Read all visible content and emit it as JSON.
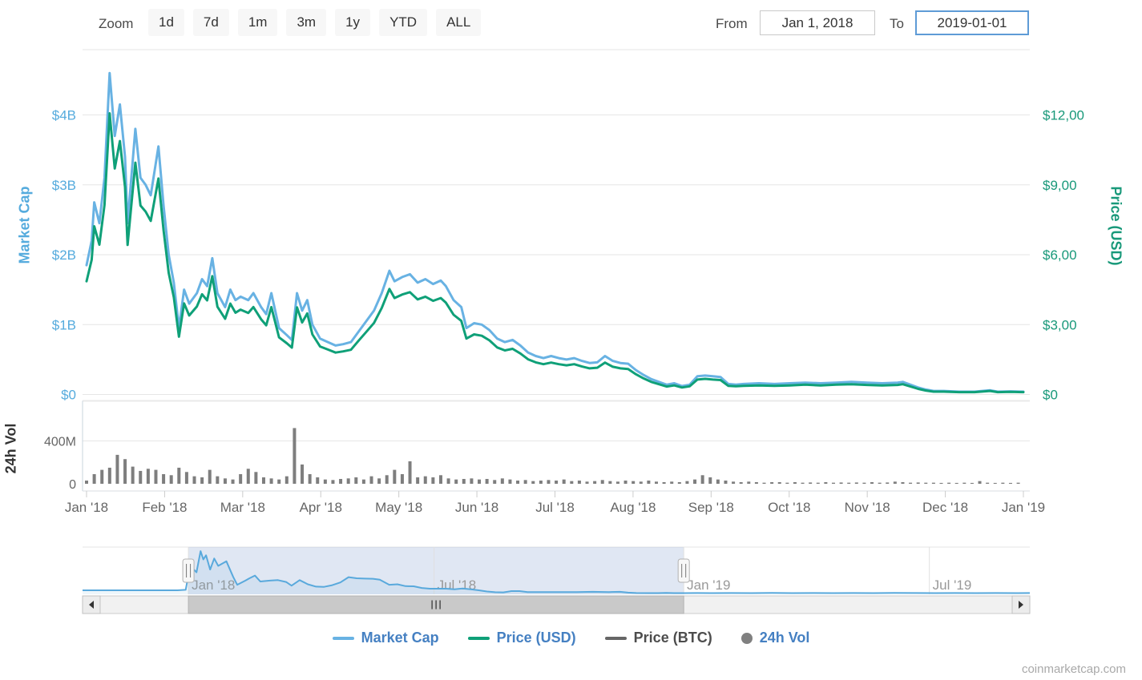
{
  "toolbar": {
    "zoom_label": "Zoom",
    "buttons": [
      "1d",
      "7d",
      "1m",
      "3m",
      "1y",
      "YTD",
      "ALL"
    ]
  },
  "range": {
    "from_label": "From",
    "from_value": "Jan 1, 2018",
    "to_label": "To",
    "to_value": "2019-01-01"
  },
  "axes": {
    "market_cap": {
      "title": "Market Cap",
      "color": "#55abdd",
      "unit": "B USD",
      "tick_values": [
        0,
        1,
        2,
        3,
        4
      ],
      "tick_labels": [
        "$0",
        "$1B",
        "$2B",
        "$3B",
        "$4B"
      ]
    },
    "price_usd": {
      "title": "Price (USD)",
      "color": "#19997a",
      "tick_values": [
        0,
        3,
        6,
        9,
        12
      ],
      "tick_labels": [
        "$0",
        "$3,00",
        "$6,00",
        "$9,00",
        "$12,00"
      ]
    },
    "volume": {
      "title": "24h Vol",
      "color": "#666666",
      "unit": "M USD",
      "tick_values": [
        0,
        400
      ],
      "tick_labels": [
        "0",
        "400M"
      ]
    },
    "x": {
      "labels": [
        "Jan '18",
        "Feb '18",
        "Mar '18",
        "Apr '18",
        "May '18",
        "Jun '18",
        "Jul '18",
        "Aug '18",
        "Sep '18",
        "Oct '18",
        "Nov '18",
        "Dec '18",
        "Jan '19"
      ]
    }
  },
  "chart_data": {
    "type": "line+bar",
    "x_start_date": "2018-01-01",
    "x_range_days": [
      0,
      365
    ],
    "grid": true,
    "legend_position": "bottom",
    "series": [
      {
        "name": "Market Cap",
        "type": "line",
        "color": "#68b2e3",
        "axis": "market_cap",
        "unit": "$B",
        "x_days": [
          0,
          2,
          3,
          5,
          7,
          9,
          11,
          13,
          15,
          16,
          19,
          21,
          23,
          25,
          28,
          30,
          32,
          34,
          36,
          38,
          40,
          43,
          45,
          47,
          49,
          51,
          54,
          56,
          58,
          60,
          63,
          65,
          68,
          70,
          72,
          75,
          78,
          80,
          82,
          84,
          86,
          88,
          91,
          94,
          97,
          100,
          103,
          106,
          109,
          112,
          115,
          118,
          120,
          123,
          126,
          129,
          132,
          135,
          138,
          140,
          143,
          146,
          148,
          151,
          154,
          157,
          160,
          163,
          166,
          169,
          172,
          175,
          178,
          181,
          184,
          187,
          190,
          193,
          196,
          199,
          202,
          205,
          208,
          211,
          214,
          217,
          220,
          223,
          226,
          229,
          232,
          235,
          238,
          241,
          244,
          247,
          250,
          253,
          256,
          262,
          268,
          274,
          280,
          286,
          292,
          298,
          304,
          310,
          316,
          318,
          321,
          324,
          327,
          330,
          334,
          340,
          346,
          352,
          355,
          360,
          365
        ],
        "values": [
          1.85,
          2.2,
          2.75,
          2.45,
          3.1,
          4.6,
          3.7,
          4.15,
          3.4,
          2.45,
          3.8,
          3.1,
          3.0,
          2.85,
          3.55,
          2.7,
          2.0,
          1.6,
          0.95,
          1.5,
          1.3,
          1.45,
          1.65,
          1.55,
          1.95,
          1.45,
          1.25,
          1.5,
          1.35,
          1.4,
          1.35,
          1.45,
          1.25,
          1.15,
          1.45,
          0.95,
          0.85,
          0.78,
          1.45,
          1.2,
          1.35,
          1.0,
          0.8,
          0.75,
          0.7,
          0.72,
          0.75,
          0.9,
          1.05,
          1.2,
          1.45,
          1.77,
          1.62,
          1.68,
          1.72,
          1.6,
          1.65,
          1.58,
          1.63,
          1.55,
          1.35,
          1.25,
          0.95,
          1.02,
          1.0,
          0.92,
          0.8,
          0.75,
          0.78,
          0.7,
          0.6,
          0.55,
          0.52,
          0.55,
          0.52,
          0.5,
          0.52,
          0.48,
          0.45,
          0.46,
          0.55,
          0.48,
          0.45,
          0.44,
          0.35,
          0.28,
          0.22,
          0.18,
          0.14,
          0.16,
          0.12,
          0.14,
          0.26,
          0.27,
          0.26,
          0.25,
          0.15,
          0.14,
          0.15,
          0.16,
          0.15,
          0.16,
          0.17,
          0.16,
          0.17,
          0.18,
          0.17,
          0.16,
          0.17,
          0.18,
          0.14,
          0.1,
          0.07,
          0.05,
          0.05,
          0.04,
          0.04,
          0.06,
          0.04,
          0.045,
          0.04
        ]
      },
      {
        "name": "Price (USD)",
        "type": "line",
        "color": "#0fa078",
        "axis": "price_usd",
        "unit": "$",
        "x_days": [
          0,
          2,
          3,
          5,
          7,
          9,
          11,
          13,
          15,
          16,
          19,
          21,
          23,
          25,
          28,
          30,
          32,
          34,
          36,
          38,
          40,
          43,
          45,
          47,
          49,
          51,
          54,
          56,
          58,
          60,
          63,
          65,
          68,
          70,
          72,
          75,
          78,
          80,
          82,
          84,
          86,
          88,
          91,
          94,
          97,
          100,
          103,
          106,
          109,
          112,
          115,
          118,
          120,
          123,
          126,
          129,
          132,
          135,
          138,
          140,
          143,
          146,
          148,
          151,
          154,
          157,
          160,
          163,
          166,
          169,
          172,
          175,
          178,
          181,
          184,
          187,
          190,
          193,
          196,
          199,
          202,
          205,
          208,
          211,
          214,
          217,
          220,
          223,
          226,
          229,
          232,
          235,
          238,
          241,
          244,
          247,
          250,
          253,
          256,
          262,
          268,
          274,
          280,
          286,
          292,
          298,
          304,
          310,
          316,
          318,
          321,
          324,
          327,
          330,
          334,
          340,
          346,
          352,
          355,
          360,
          365
        ],
        "values": [
          4.86,
          5.78,
          7.22,
          6.43,
          8.14,
          12.07,
          9.7,
          10.88,
          8.91,
          6.42,
          9.95,
          8.11,
          7.85,
          7.45,
          9.27,
          7.05,
          5.22,
          4.17,
          2.48,
          3.91,
          3.39,
          3.78,
          4.3,
          4.04,
          5.08,
          3.77,
          3.25,
          3.9,
          3.51,
          3.64,
          3.5,
          3.75,
          3.23,
          2.97,
          3.75,
          2.45,
          2.2,
          2.01,
          3.74,
          3.09,
          3.48,
          2.58,
          2.06,
          1.93,
          1.8,
          1.85,
          1.92,
          2.31,
          2.69,
          3.07,
          3.71,
          4.53,
          4.14,
          4.29,
          4.39,
          4.08,
          4.2,
          4.02,
          4.14,
          3.94,
          3.42,
          3.16,
          2.4,
          2.58,
          2.52,
          2.32,
          2.02,
          1.89,
          1.96,
          1.76,
          1.51,
          1.38,
          1.3,
          1.37,
          1.3,
          1.25,
          1.3,
          1.2,
          1.12,
          1.15,
          1.37,
          1.19,
          1.12,
          1.09,
          0.87,
          0.69,
          0.54,
          0.44,
          0.34,
          0.39,
          0.3,
          0.35,
          0.64,
          0.67,
          0.64,
          0.62,
          0.37,
          0.35,
          0.37,
          0.39,
          0.37,
          0.39,
          0.42,
          0.39,
          0.42,
          0.44,
          0.41,
          0.39,
          0.41,
          0.44,
          0.34,
          0.24,
          0.17,
          0.12,
          0.12,
          0.1,
          0.1,
          0.15,
          0.1,
          0.11,
          0.1
        ]
      },
      {
        "name": "Price (BTC)",
        "type": "line",
        "color": "#666666",
        "axis": "price_btc",
        "visible": false,
        "values": []
      },
      {
        "name": "24h Vol",
        "type": "bar",
        "color": "#7e7e7e",
        "axis": "volume",
        "unit": "$M",
        "x_start_day": 0,
        "x_step_days": 3,
        "values": [
          30,
          90,
          130,
          150,
          270,
          230,
          160,
          120,
          140,
          130,
          90,
          80,
          150,
          110,
          70,
          60,
          130,
          70,
          50,
          40,
          90,
          140,
          110,
          60,
          50,
          40,
          70,
          520,
          180,
          90,
          60,
          40,
          35,
          45,
          50,
          60,
          40,
          70,
          50,
          80,
          130,
          90,
          210,
          60,
          70,
          60,
          80,
          50,
          40,
          45,
          50,
          40,
          45,
          35,
          50,
          40,
          30,
          35,
          25,
          30,
          35,
          30,
          40,
          25,
          30,
          20,
          25,
          35,
          25,
          20,
          30,
          25,
          20,
          30,
          20,
          15,
          20,
          15,
          25,
          40,
          80,
          60,
          40,
          30,
          20,
          15,
          20,
          15,
          10,
          15,
          15,
          10,
          15,
          10,
          12,
          10,
          15,
          10,
          12,
          10,
          12,
          10,
          15,
          10,
          12,
          20,
          15,
          10,
          12,
          10,
          10,
          8,
          10,
          8,
          10,
          8,
          25,
          10,
          8,
          10,
          8,
          10
        ]
      }
    ]
  },
  "navigator": {
    "labels": [
      "Jan '18",
      "Jul '18",
      "Jan '19",
      "Jul '19"
    ],
    "label_days": [
      0,
      181,
      365,
      546
    ],
    "selected_range_days": [
      0,
      365
    ],
    "line_color": "#59a9dc",
    "mask_color": "rgba(102,133,194,0.2)",
    "series": {
      "name": "Market Cap (full history)",
      "unit": "$B",
      "x_days": [
        -78,
        -40,
        -8,
        -2,
        0,
        3,
        6,
        9,
        11,
        13,
        16,
        19,
        22,
        28,
        33,
        36,
        42,
        45,
        49,
        53,
        60,
        66,
        72,
        76,
        82,
        88,
        94,
        100,
        106,
        112,
        118,
        124,
        130,
        136,
        141,
        148,
        154,
        160,
        166,
        172,
        178,
        184,
        190,
        196,
        202,
        208,
        214,
        220,
        226,
        232,
        238,
        244,
        250,
        256,
        262,
        274,
        286,
        298,
        310,
        318,
        324,
        330,
        340,
        346,
        352,
        358,
        365,
        375,
        385,
        400,
        415,
        430,
        445,
        460,
        475,
        490,
        505,
        520,
        535,
        550,
        565,
        580,
        595,
        610,
        620
      ],
      "values": [
        0.35,
        0.35,
        0.35,
        0.4,
        2.0,
        2.75,
        2.3,
        4.6,
        3.7,
        4.15,
        2.6,
        3.8,
        3.0,
        3.5,
        1.8,
        0.95,
        1.4,
        1.65,
        1.95,
        1.3,
        1.4,
        1.45,
        1.25,
        0.85,
        1.45,
        1.0,
        0.75,
        0.72,
        0.9,
        1.2,
        1.77,
        1.65,
        1.62,
        1.6,
        1.5,
        0.95,
        1.0,
        0.8,
        0.78,
        0.6,
        0.52,
        0.52,
        0.52,
        0.45,
        0.55,
        0.45,
        0.35,
        0.22,
        0.14,
        0.12,
        0.26,
        0.26,
        0.15,
        0.15,
        0.16,
        0.16,
        0.16,
        0.18,
        0.16,
        0.18,
        0.1,
        0.05,
        0.04,
        0.04,
        0.06,
        0.04,
        0.04,
        0.05,
        0.04,
        0.05,
        0.04,
        0.06,
        0.04,
        0.05,
        0.04,
        0.05,
        0.04,
        0.06,
        0.05,
        0.04,
        0.05,
        0.04,
        0.05,
        0.04,
        0.05
      ]
    }
  },
  "legend": {
    "items": [
      {
        "label": "Market Cap",
        "marker": "line",
        "color": "#68b2e3",
        "label_color": "#4580c2"
      },
      {
        "label": "Price (USD)",
        "marker": "line",
        "color": "#0fa078",
        "label_color": "#4580c2"
      },
      {
        "label": "Price (BTC)",
        "marker": "line",
        "color": "#666666",
        "label_color": "#4d4d4d"
      },
      {
        "label": "24h Vol",
        "marker": "circle",
        "color": "#808080",
        "label_color": "#4580c2"
      }
    ]
  },
  "watermark": "coinmarketcap.com"
}
